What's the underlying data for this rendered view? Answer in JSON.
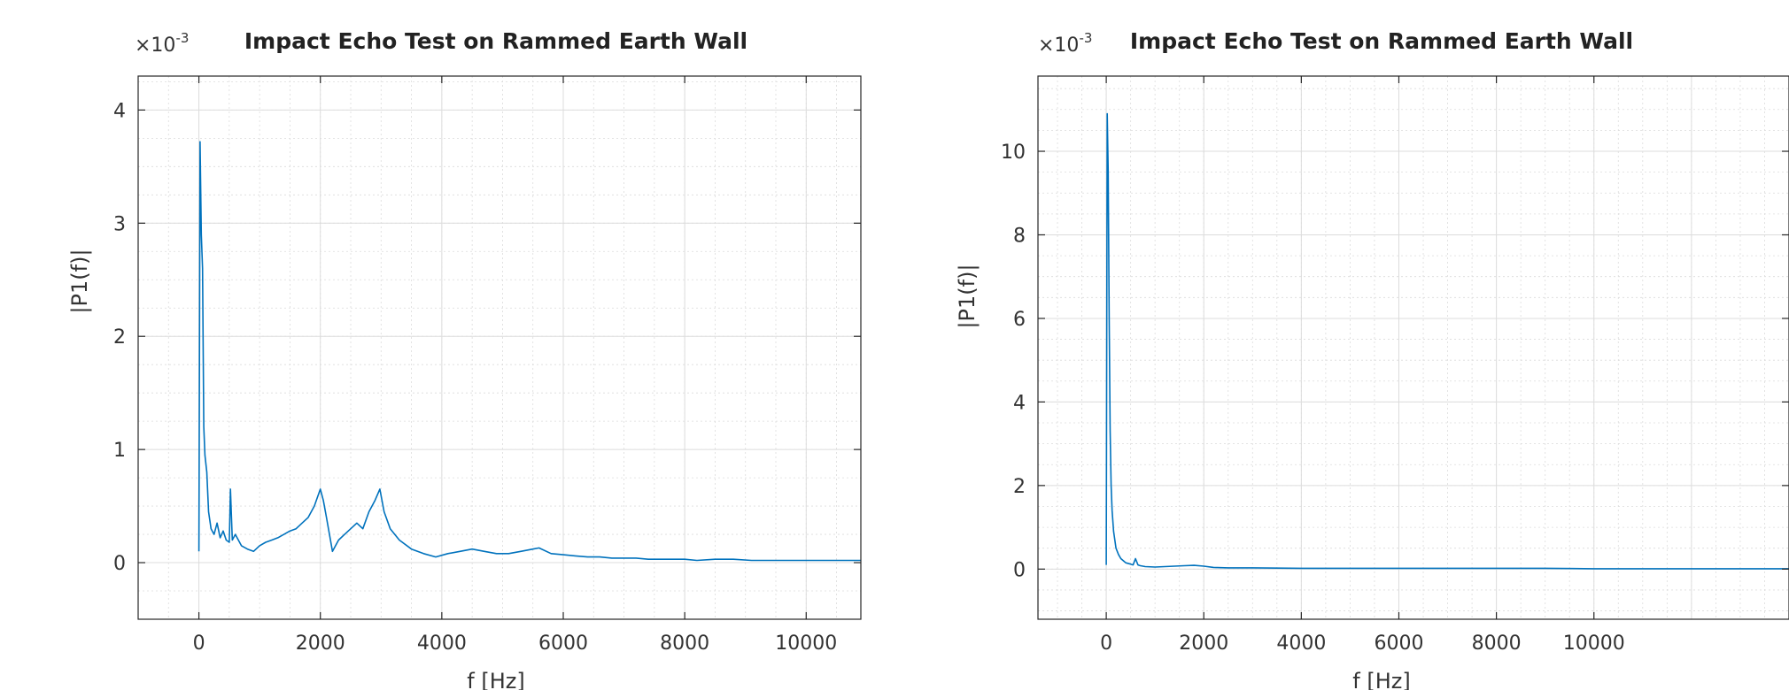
{
  "chart_data": [
    {
      "type": "line",
      "title": "Impact Echo Test on Rammed Earth Wall",
      "xlabel": "f [Hz]",
      "ylabel": "|P1(f)|",
      "y_exponent_label": "×10",
      "y_exponent_power": "-3",
      "xlim": [
        -1000,
        10900
      ],
      "ylim": [
        -0.5,
        4.3
      ],
      "x_ticks": [
        0,
        2000,
        4000,
        6000,
        8000,
        10000
      ],
      "x_tick_labels": [
        "0",
        "2000",
        "4000",
        "6000",
        "8000",
        "10000"
      ],
      "y_ticks": [
        0,
        1,
        2,
        3,
        4
      ],
      "y_tick_labels": [
        "0",
        "1",
        "2",
        "3",
        "4"
      ],
      "grid": true,
      "series": [
        {
          "color": "#0072BD",
          "x": [
            0,
            20,
            40,
            60,
            80,
            100,
            130,
            160,
            200,
            250,
            300,
            350,
            400,
            450,
            500,
            520,
            550,
            600,
            700,
            800,
            900,
            1000,
            1100,
            1200,
            1300,
            1400,
            1500,
            1600,
            1700,
            1800,
            1900,
            2000,
            2050,
            2100,
            2200,
            2300,
            2400,
            2500,
            2600,
            2700,
            2800,
            2900,
            2980,
            3050,
            3150,
            3300,
            3500,
            3700,
            3900,
            4100,
            4300,
            4500,
            4700,
            4900,
            5100,
            5300,
            5500,
            5600,
            5800,
            6000,
            6200,
            6400,
            6600,
            6800,
            7000,
            7200,
            7400,
            7600,
            7800,
            8000,
            8200,
            8500,
            8800,
            9100,
            9400,
            9700,
            10000,
            10300,
            10600,
            10900
          ],
          "values": [
            0.1,
            3.72,
            2.9,
            2.6,
            1.2,
            0.95,
            0.8,
            0.45,
            0.3,
            0.25,
            0.35,
            0.22,
            0.28,
            0.2,
            0.18,
            0.65,
            0.2,
            0.25,
            0.15,
            0.12,
            0.1,
            0.15,
            0.18,
            0.2,
            0.22,
            0.25,
            0.28,
            0.3,
            0.35,
            0.4,
            0.5,
            0.65,
            0.55,
            0.4,
            0.1,
            0.2,
            0.25,
            0.3,
            0.35,
            0.3,
            0.45,
            0.55,
            0.65,
            0.45,
            0.3,
            0.2,
            0.12,
            0.08,
            0.05,
            0.08,
            0.1,
            0.12,
            0.1,
            0.08,
            0.08,
            0.1,
            0.12,
            0.13,
            0.08,
            0.07,
            0.06,
            0.05,
            0.05,
            0.04,
            0.04,
            0.04,
            0.03,
            0.03,
            0.03,
            0.03,
            0.02,
            0.03,
            0.03,
            0.02,
            0.02,
            0.02,
            0.02,
            0.02,
            0.02,
            0.02
          ]
        }
      ]
    },
    {
      "type": "line",
      "title": "Impact Echo Test on Rammed Earth Wall",
      "xlabel": "f [Hz]",
      "ylabel": "|P1(f)|",
      "y_exponent_label": "×10",
      "y_exponent_power": "-3",
      "xlim": [
        -1400,
        14000
      ],
      "ylim": [
        -1.2,
        11.8
      ],
      "x_ticks": [
        0,
        2000,
        4000,
        6000,
        8000,
        10000
      ],
      "x_tick_labels": [
        "0",
        "2000",
        "4000",
        "6000",
        "8000",
        "10000"
      ],
      "y_ticks": [
        0,
        2,
        4,
        6,
        8,
        10
      ],
      "y_tick_labels": [
        "0",
        "2",
        "4",
        "6",
        "8",
        "10"
      ],
      "grid": true,
      "series": [
        {
          "color": "#0072BD",
          "x": [
            0,
            20,
            40,
            60,
            80,
            100,
            120,
            150,
            200,
            250,
            300,
            400,
            500,
            550,
            600,
            650,
            700,
            800,
            1000,
            1200,
            1400,
            1600,
            1800,
            2000,
            2200,
            2500,
            3000,
            4000,
            5000,
            6000,
            7000,
            8000,
            9000,
            10000,
            11000,
            12000,
            13000,
            14000
          ],
          "values": [
            0.1,
            10.9,
            9.5,
            6.0,
            3.3,
            2.0,
            1.4,
            0.9,
            0.5,
            0.35,
            0.25,
            0.15,
            0.12,
            0.1,
            0.25,
            0.1,
            0.08,
            0.06,
            0.05,
            0.06,
            0.07,
            0.08,
            0.09,
            0.07,
            0.04,
            0.03,
            0.03,
            0.02,
            0.02,
            0.02,
            0.02,
            0.02,
            0.02,
            0.01,
            0.01,
            0.01,
            0.01,
            0.01
          ]
        }
      ]
    }
  ]
}
